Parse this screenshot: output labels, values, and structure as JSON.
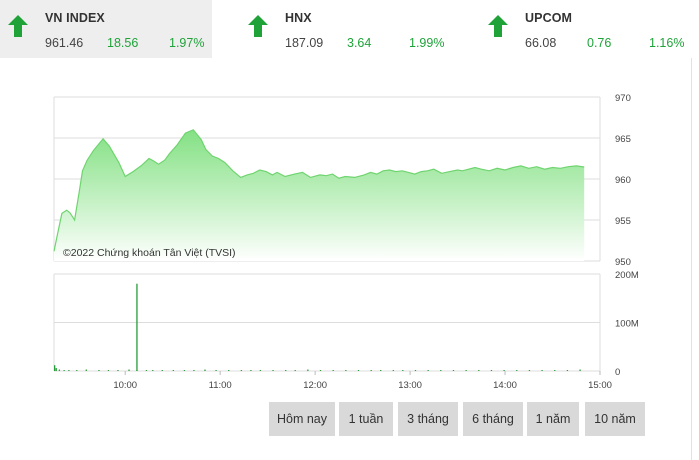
{
  "indices": [
    {
      "name": "VN INDEX",
      "value": "961.46",
      "change": "18.56",
      "percent": "1.97%",
      "direction": "up",
      "selected": true
    },
    {
      "name": "HNX",
      "value": "187.09",
      "change": "3.64",
      "percent": "1.99%",
      "direction": "up",
      "selected": false
    },
    {
      "name": "UPCOM",
      "value": "66.08",
      "change": "0.76",
      "percent": "1.16%",
      "direction": "up",
      "selected": false
    }
  ],
  "colors": {
    "up": "#1fa339",
    "area_top": "#7ddf7d",
    "area_bottom": "#ffffff",
    "line": "#6fd46f",
    "volume": "#2a9c3a",
    "grid": "#dddddd"
  },
  "chart": {
    "watermark": "©2022 Chứng khoán Tân Việt (TVSI)",
    "price_ticks": [
      "970",
      "965",
      "960",
      "955",
      "950"
    ],
    "volume_ticks": [
      "200M",
      "100M",
      "0"
    ],
    "time_ticks": [
      "10:00",
      "11:00",
      "12:00",
      "13:00",
      "14:00",
      "15:00"
    ]
  },
  "chart_data": {
    "type": "area",
    "price": {
      "ylim": [
        950,
        970
      ],
      "x_minutes_from_0915": [
        0,
        2,
        5,
        8,
        10,
        13,
        16,
        18,
        21,
        25,
        28,
        31,
        35,
        38,
        41,
        45,
        50,
        55,
        60,
        63,
        66,
        70,
        73,
        78,
        83,
        88,
        93,
        96,
        100,
        104,
        108,
        113,
        118,
        122,
        126,
        130,
        134,
        138,
        141,
        146,
        152,
        157,
        162,
        168,
        172,
        176,
        180,
        184,
        190,
        196,
        200,
        204,
        208,
        212,
        216,
        220,
        224,
        228,
        232,
        236,
        240,
        245,
        250,
        255,
        258,
        262,
        266,
        270,
        275,
        280,
        285,
        290,
        295,
        300,
        305,
        310,
        315,
        320,
        325,
        330,
        335
      ],
      "values": [
        951.2,
        953.1,
        955.8,
        956.2,
        955.9,
        955.0,
        958.5,
        961.0,
        962.3,
        963.5,
        964.2,
        964.9,
        964.0,
        963.0,
        962.0,
        960.3,
        960.9,
        961.6,
        962.5,
        962.2,
        961.8,
        962.3,
        963.1,
        964.2,
        965.6,
        966.0,
        964.8,
        963.6,
        962.8,
        962.5,
        962.0,
        961.0,
        960.2,
        960.5,
        960.7,
        961.1,
        960.9,
        960.5,
        960.8,
        960.3,
        960.6,
        960.8,
        960.2,
        960.5,
        960.4,
        960.6,
        960.1,
        960.3,
        960.2,
        960.5,
        960.8,
        960.6,
        961.0,
        961.1,
        960.9,
        961.0,
        960.8,
        960.6,
        960.9,
        961.0,
        961.2,
        960.7,
        960.9,
        961.1,
        961.0,
        961.2,
        961.4,
        961.2,
        961.0,
        961.3,
        961.1,
        961.4,
        961.6,
        961.3,
        961.5,
        961.2,
        961.4,
        961.3,
        961.5,
        961.6,
        961.46
      ]
    },
    "volume": {
      "ylim": [
        0,
        200
      ],
      "unit": "M",
      "bars": [
        {
          "min": 0,
          "v": 12
        },
        {
          "min": 1,
          "v": 6
        },
        {
          "min": 3,
          "v": 3
        },
        {
          "min": 6,
          "v": 2
        },
        {
          "min": 9,
          "v": 2
        },
        {
          "min": 14,
          "v": 2
        },
        {
          "min": 20,
          "v": 3
        },
        {
          "min": 28,
          "v": 2
        },
        {
          "min": 34,
          "v": 2
        },
        {
          "min": 40,
          "v": 2
        },
        {
          "min": 47,
          "v": 3
        },
        {
          "min": 52,
          "v": 2
        },
        {
          "min": 58,
          "v": 2
        },
        {
          "min": 62,
          "v": 2
        },
        {
          "min": 68,
          "v": 2
        },
        {
          "min": 75,
          "v": 2
        },
        {
          "min": 82,
          "v": 2
        },
        {
          "min": 88,
          "v": 2
        },
        {
          "min": 95,
          "v": 3
        },
        {
          "min": 102,
          "v": 2
        },
        {
          "min": 110,
          "v": 2
        },
        {
          "min": 118,
          "v": 2
        },
        {
          "min": 124,
          "v": 2
        },
        {
          "min": 130,
          "v": 2
        },
        {
          "min": 138,
          "v": 2
        },
        {
          "min": 146,
          "v": 2
        },
        {
          "min": 152,
          "v": 2
        },
        {
          "min": 160,
          "v": 3
        },
        {
          "min": 168,
          "v": 2
        },
        {
          "min": 176,
          "v": 2
        },
        {
          "min": 184,
          "v": 2
        },
        {
          "min": 192,
          "v": 2
        },
        {
          "min": 200,
          "v": 2
        },
        {
          "min": 206,
          "v": 2
        },
        {
          "min": 214,
          "v": 2
        },
        {
          "min": 220,
          "v": 2
        },
        {
          "min": 228,
          "v": 2
        },
        {
          "min": 236,
          "v": 2
        },
        {
          "min": 244,
          "v": 2
        },
        {
          "min": 252,
          "v": 2
        },
        {
          "min": 260,
          "v": 2
        },
        {
          "min": 268,
          "v": 2
        },
        {
          "min": 276,
          "v": 2
        },
        {
          "min": 284,
          "v": 2
        },
        {
          "min": 292,
          "v": 2
        },
        {
          "min": 300,
          "v": 2
        },
        {
          "min": 308,
          "v": 2
        },
        {
          "min": 316,
          "v": 2
        },
        {
          "min": 324,
          "v": 2
        },
        {
          "min": 332,
          "v": 3
        },
        {
          "min": 52,
          "v": 180
        }
      ]
    }
  },
  "ranges": [
    "Hôm nay",
    "1 tuần",
    "3 tháng",
    "6 tháng",
    "1 năm",
    "10 năm"
  ]
}
